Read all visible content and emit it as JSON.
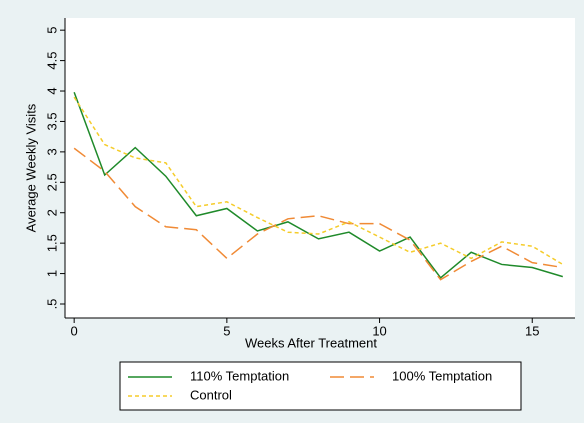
{
  "chart_data": {
    "type": "line",
    "x": [
      0,
      1,
      2,
      3,
      4,
      5,
      6,
      7,
      8,
      9,
      10,
      11,
      12,
      13,
      14,
      15,
      16
    ],
    "series": [
      {
        "name": "110% Temptation",
        "color": "#1f8a2a",
        "line_style": "solid",
        "values": [
          3.98,
          2.62,
          3.07,
          2.6,
          1.95,
          2.07,
          1.7,
          1.85,
          1.57,
          1.68,
          1.37,
          1.6,
          0.93,
          1.35,
          1.15,
          1.1,
          0.95
        ]
      },
      {
        "name": "100% Temptation",
        "color": "#f08a35",
        "line_style": "dash",
        "values": [
          3.06,
          2.68,
          2.1,
          1.77,
          1.72,
          1.25,
          1.65,
          1.9,
          1.95,
          1.82,
          1.82,
          1.55,
          0.9,
          1.2,
          1.45,
          1.18,
          1.1
        ]
      },
      {
        "name": "Control",
        "color": "#f5cc2a",
        "line_style": "dot",
        "values": [
          3.9,
          3.12,
          2.9,
          2.82,
          2.1,
          2.18,
          1.92,
          1.68,
          1.65,
          1.85,
          1.6,
          1.35,
          1.5,
          1.25,
          1.52,
          1.45,
          1.15
        ]
      }
    ],
    "xlabel": "Weeks After Treatment",
    "ylabel": "Average Weekly Visits",
    "xlim": [
      -0.3,
      16.4
    ],
    "xticks": [
      0,
      5,
      10,
      15
    ],
    "ylim": [
      0.27,
      5.2
    ],
    "yticks": [
      {
        "value": 0.5,
        "label": ".5"
      },
      1,
      1.5,
      2,
      2.5,
      3,
      3.5,
      4,
      4.5,
      5
    ],
    "grid": false
  }
}
